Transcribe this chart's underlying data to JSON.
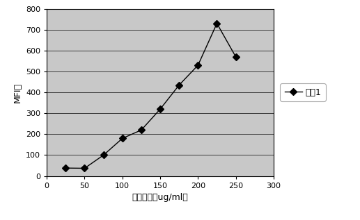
{
  "x": [
    25,
    50,
    75,
    100,
    125,
    150,
    175,
    200,
    225,
    250
  ],
  "y": [
    38,
    37,
    100,
    180,
    220,
    320,
    435,
    530,
    730,
    570
  ],
  "xlim": [
    0,
    300
  ],
  "ylim": [
    0,
    800
  ],
  "xticks": [
    0,
    50,
    100,
    150,
    200,
    250,
    300
  ],
  "yticks": [
    0,
    100,
    200,
    300,
    400,
    500,
    600,
    700,
    800
  ],
  "xlabel": "单抗浓度（ug/ml）",
  "ylabel": "MFI值",
  "legend_label": "系列1",
  "line_color": "#000000",
  "marker": "D",
  "marker_color": "#000000",
  "marker_size": 5,
  "plot_bg_color": "#c8c8c8",
  "fig_bg_color": "#ffffff",
  "grid_color": "#000000",
  "legend_bg_color": "#ffffff",
  "legend_edge_color": "#aaaaaa"
}
